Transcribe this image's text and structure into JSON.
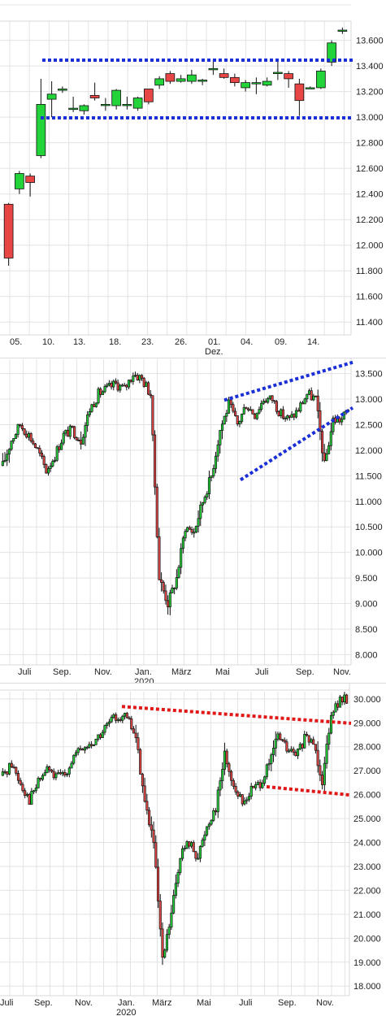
{
  "chart_data": [
    {
      "type": "candlestick",
      "ylim": [
        11300,
        13750
      ],
      "yticks": [
        11400,
        11600,
        11800,
        12000,
        12200,
        12400,
        12600,
        12800,
        13000,
        13200,
        13400,
        13600
      ],
      "ytick_labels": [
        "11.400",
        "11.600",
        "11.800",
        "12.000",
        "12.200",
        "12.400",
        "12.600",
        "12.800",
        "13.000",
        "13.200",
        "13.400",
        "13.600"
      ],
      "x_labels": [
        "05.",
        "10.",
        "13.",
        "18.",
        "23.",
        "26.",
        "01.",
        "04.",
        "09.",
        "14."
      ],
      "x_sub_labels": [
        "Dez."
      ],
      "grid": true,
      "candles": [
        {
          "o": 12320,
          "h": 12330,
          "l": 11840,
          "c": 11900
        },
        {
          "o": 12440,
          "h": 12580,
          "l": 12400,
          "c": 12560
        },
        {
          "o": 12540,
          "h": 12560,
          "l": 12380,
          "c": 12490
        },
        {
          "o": 12700,
          "h": 13300,
          "l": 12680,
          "c": 13100
        },
        {
          "o": 13140,
          "h": 13280,
          "l": 13000,
          "c": 13180
        },
        {
          "o": 13210,
          "h": 13240,
          "l": 13190,
          "c": 13220
        },
        {
          "o": 13060,
          "h": 13160,
          "l": 13040,
          "c": 13070
        },
        {
          "o": 13050,
          "h": 13100,
          "l": 13020,
          "c": 13090
        },
        {
          "o": 13170,
          "h": 13270,
          "l": 13130,
          "c": 13150
        },
        {
          "o": 13100,
          "h": 13150,
          "l": 13050,
          "c": 13100
        },
        {
          "o": 13090,
          "h": 13220,
          "l": 13060,
          "c": 13210
        },
        {
          "o": 13090,
          "h": 13160,
          "l": 13060,
          "c": 13100
        },
        {
          "o": 13070,
          "h": 13160,
          "l": 13050,
          "c": 13150
        },
        {
          "o": 13220,
          "h": 13220,
          "l": 13100,
          "c": 13120
        },
        {
          "o": 13250,
          "h": 13320,
          "l": 13220,
          "c": 13300
        },
        {
          "o": 13340,
          "h": 13360,
          "l": 13260,
          "c": 13280
        },
        {
          "o": 13280,
          "h": 13330,
          "l": 13270,
          "c": 13300
        },
        {
          "o": 13280,
          "h": 13370,
          "l": 13260,
          "c": 13330
        },
        {
          "o": 13280,
          "h": 13300,
          "l": 13250,
          "c": 13290
        },
        {
          "o": 13370,
          "h": 13450,
          "l": 13330,
          "c": 13380
        },
        {
          "o": 13340,
          "h": 13380,
          "l": 13300,
          "c": 13310
        },
        {
          "o": 13310,
          "h": 13340,
          "l": 13240,
          "c": 13270
        },
        {
          "o": 13230,
          "h": 13290,
          "l": 13200,
          "c": 13270
        },
        {
          "o": 13260,
          "h": 13310,
          "l": 13180,
          "c": 13270
        },
        {
          "o": 13250,
          "h": 13310,
          "l": 13240,
          "c": 13280
        },
        {
          "o": 13340,
          "h": 13440,
          "l": 13290,
          "c": 13350
        },
        {
          "o": 13340,
          "h": 13360,
          "l": 13230,
          "c": 13300
        },
        {
          "o": 13260,
          "h": 13300,
          "l": 13010,
          "c": 13130
        },
        {
          "o": 13230,
          "h": 13240,
          "l": 13220,
          "c": 13230
        },
        {
          "o": 13230,
          "h": 13380,
          "l": 13220,
          "c": 13360
        },
        {
          "o": 13430,
          "h": 13600,
          "l": 13400,
          "c": 13580
        },
        {
          "o": 13680,
          "h": 13700,
          "l": 13650,
          "c": 13680
        }
      ],
      "trendlines": [
        {
          "color": "#1a2fd6",
          "points": [
            [
              "10.",
              13445
            ],
            [
              "end",
              13445
            ]
          ]
        },
        {
          "color": "#1a2fd6",
          "points": [
            [
              "10.",
              12995
            ],
            [
              "end",
              12995
            ]
          ]
        }
      ]
    },
    {
      "type": "candlestick",
      "ylim": [
        7800,
        13780
      ],
      "yticks": [
        8000,
        8500,
        9000,
        9500,
        10000,
        10500,
        11000,
        11500,
        12000,
        12500,
        13000,
        13500
      ],
      "ytick_labels": [
        "8.000",
        "8.500",
        "9.000",
        "9.500",
        "10.000",
        "10.500",
        "11.000",
        "11.500",
        "12.000",
        "12.500",
        "13.000",
        "13.500"
      ],
      "x_labels": [
        "Juli",
        "Sep.",
        "Nov.",
        "Jan.",
        "März",
        "Mai",
        "Juli",
        "Sep.",
        "Nov."
      ],
      "x_sub_labels": [
        "2020"
      ],
      "grid": true,
      "path": [
        11700,
        12200,
        12500,
        12300,
        12000,
        11600,
        11900,
        12300,
        12400,
        12200,
        12800,
        13100,
        13200,
        13300,
        13200,
        13500,
        13400,
        13100,
        9500,
        9000,
        9500,
        10500,
        10400,
        11000,
        11500,
        12400,
        12900,
        12500,
        12900,
        12700,
        13000,
        13000,
        12700,
        12600,
        12800,
        13100,
        13000,
        11700,
        12600,
        12600,
        12900
      ],
      "trendlines": [
        {
          "color": "#1a2fd6",
          "points": [
            [
              "Mai+",
              12980
            ],
            [
              "end",
              13720
            ]
          ]
        },
        {
          "color": "#1a2fd6",
          "points": [
            [
              "Mai+",
              11420
            ],
            [
              "end",
              12830
            ]
          ]
        }
      ]
    },
    {
      "type": "candlestick",
      "ylim": [
        17600,
        30300
      ],
      "yticks": [
        18000,
        19000,
        20000,
        21000,
        22000,
        23000,
        24000,
        25000,
        26000,
        27000,
        28000,
        29000,
        30000
      ],
      "ytick_labels": [
        "18.000",
        "19.000",
        "20.000",
        "21.000",
        "22.000",
        "23.000",
        "24.000",
        "25.000",
        "26.000",
        "27.000",
        "28.000",
        "29.000",
        "30.000"
      ],
      "x_labels": [
        "Juli",
        "Sep.",
        "Nov.",
        "Jan.",
        "März",
        "Mai",
        "Juli",
        "Sep.",
        "Nov."
      ],
      "x_sub_labels": [
        "2020"
      ],
      "grid": true,
      "path": [
        26800,
        27300,
        26500,
        25800,
        26500,
        27100,
        26700,
        26900,
        27600,
        27900,
        28100,
        28500,
        29000,
        29300,
        29200,
        28400,
        25700,
        24000,
        19000,
        21000,
        23500,
        24000,
        23400,
        24700,
        25500,
        27700,
        26400,
        25600,
        26200,
        26500,
        27200,
        28500,
        27900,
        27600,
        28300,
        28200,
        26600,
        29500,
        29900,
        30000
      ],
      "trendlines": [
        {
          "color": "#e01818",
          "points": [
            [
              "Jan.",
              29680
            ],
            [
              "end",
              28980
            ]
          ]
        },
        {
          "color": "#e01818",
          "points": [
            [
              "Juli+",
              26330
            ],
            [
              "end",
              25980
            ]
          ]
        }
      ]
    }
  ]
}
